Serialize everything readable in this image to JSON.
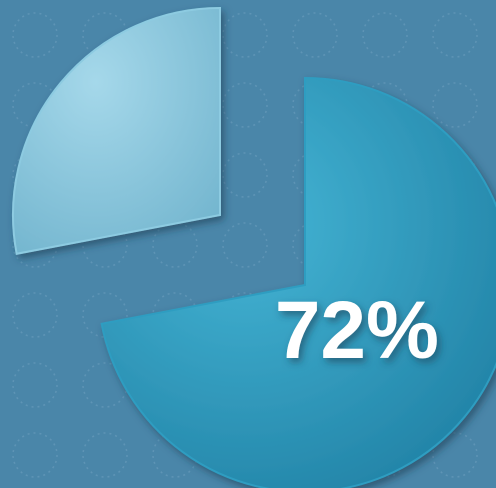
{
  "chart_data": {
    "type": "pie",
    "values": [
      72,
      28
    ],
    "value_labels": [
      "72%",
      null
    ],
    "colors": [
      "#2f9dc1",
      "#8dcbe1"
    ]
  }
}
